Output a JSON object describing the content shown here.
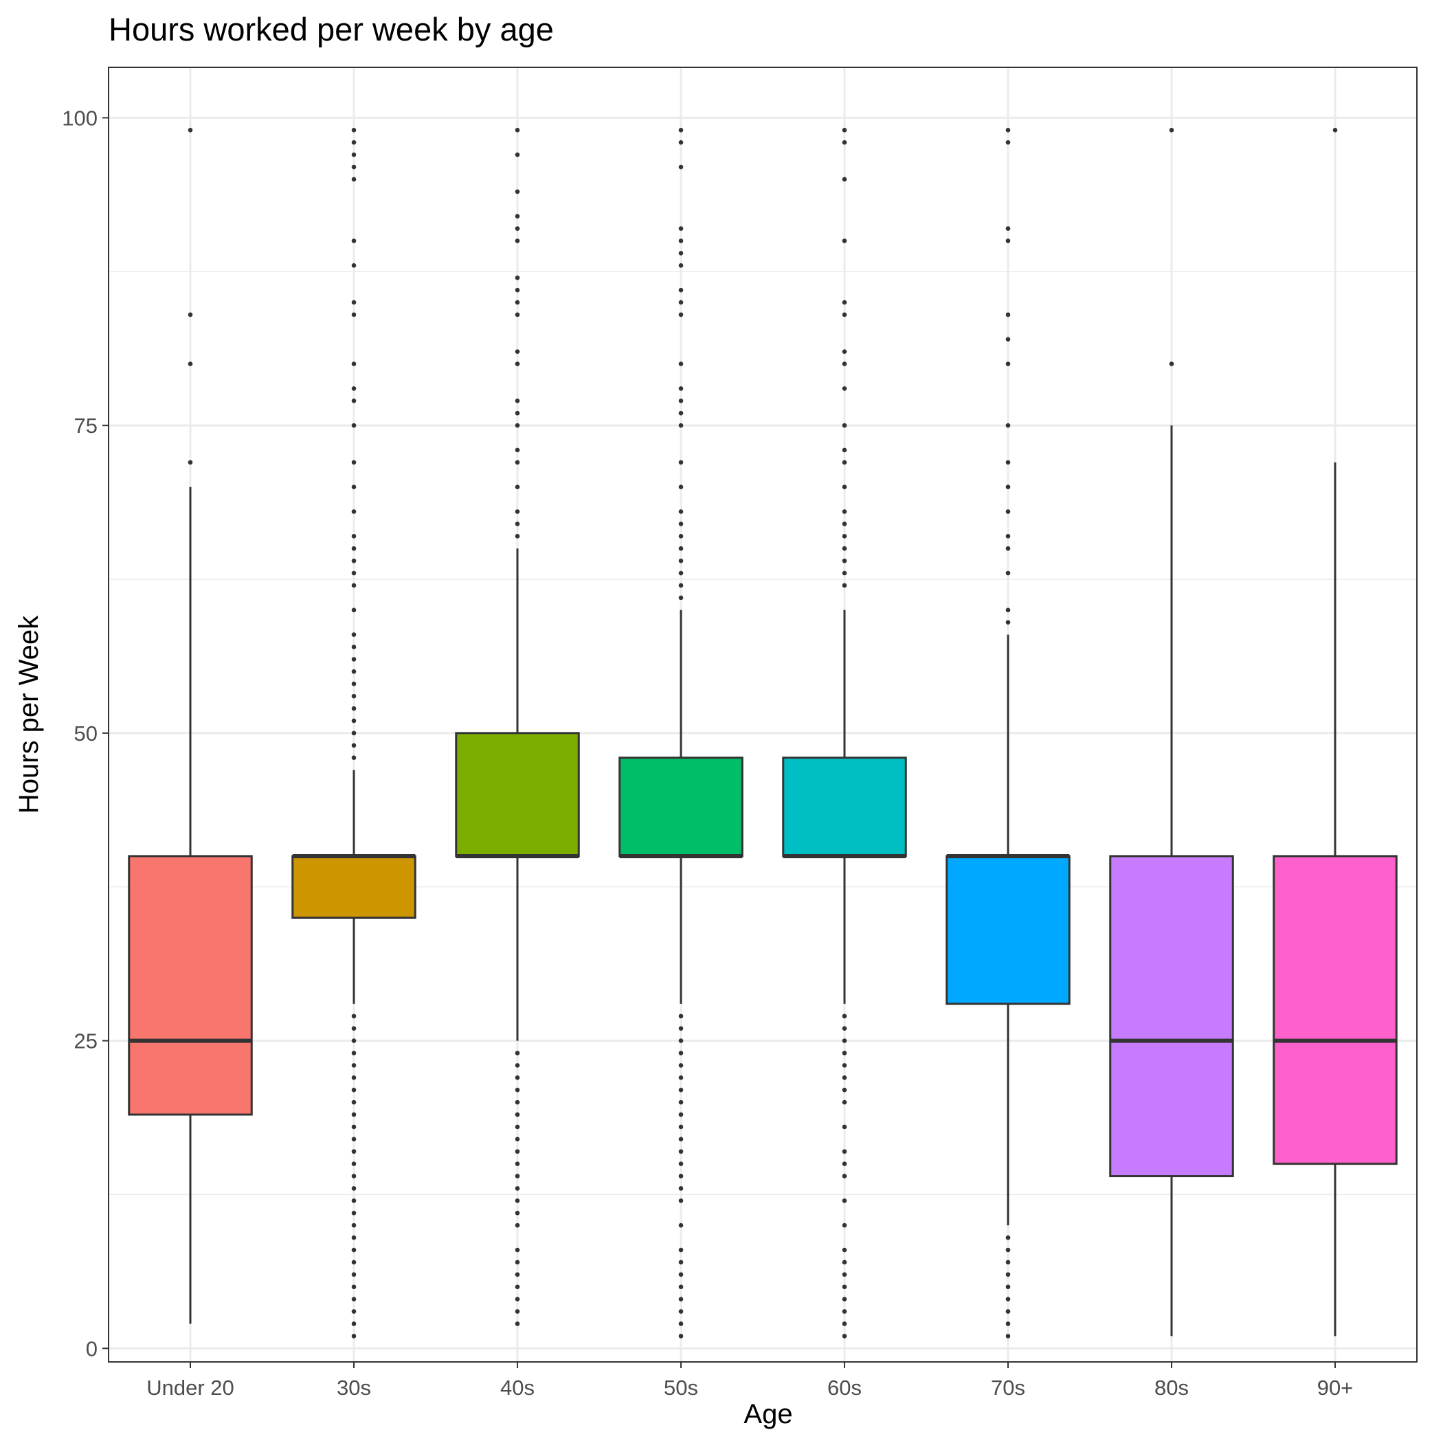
{
  "chart_data": {
    "type": "boxplot",
    "title": "Hours worked per week by age",
    "xlabel": "Age",
    "ylabel": "Hours per Week",
    "ylim": [
      -1.1,
      104.1
    ],
    "yticks": [
      0,
      25,
      50,
      75,
      100
    ],
    "grid": true,
    "legend": "none",
    "categories": [
      "Under 20",
      "30s",
      "40s",
      "50s",
      "60s",
      "70s",
      "80s",
      "90+"
    ],
    "boxes": [
      {
        "category": "Under 20",
        "color": "#F8766D",
        "whisker_low": 2,
        "q1": 19,
        "median": 25,
        "q3": 40,
        "whisker_high": 70,
        "outliers": [
          72,
          80,
          84,
          99
        ]
      },
      {
        "category": "30s",
        "color": "#CD9600",
        "whisker_low": 28,
        "q1": 35,
        "median": 40,
        "q3": 40,
        "whisker_high": 47,
        "outliers": [
          1,
          2,
          3,
          4,
          5,
          6,
          7,
          8,
          9,
          10,
          11,
          12,
          13,
          14,
          15,
          16,
          17,
          18,
          19,
          20,
          21,
          22,
          23,
          24,
          25,
          26,
          27,
          48,
          49,
          50,
          51,
          52,
          53,
          54,
          55,
          56,
          57,
          58,
          60,
          62,
          63,
          64,
          65,
          66,
          68,
          70,
          72,
          75,
          77,
          78,
          80,
          84,
          85,
          88,
          90,
          95,
          96,
          97,
          98,
          99
        ]
      },
      {
        "category": "40s",
        "color": "#7CAE00",
        "whisker_low": 25,
        "q1": 40,
        "median": 40,
        "q3": 50,
        "whisker_high": 65,
        "outliers": [
          2,
          3,
          4,
          5,
          6,
          7,
          8,
          10,
          11,
          12,
          13,
          14,
          15,
          16,
          17,
          18,
          19,
          20,
          21,
          22,
          23,
          24,
          66,
          67,
          68,
          70,
          72,
          73,
          75,
          76,
          77,
          80,
          81,
          84,
          85,
          86,
          87,
          90,
          91,
          92,
          94,
          97,
          99
        ]
      },
      {
        "category": "50s",
        "color": "#00BE67",
        "whisker_low": 28,
        "q1": 40,
        "median": 40,
        "q3": 48,
        "whisker_high": 60,
        "outliers": [
          1,
          2,
          3,
          4,
          5,
          6,
          7,
          8,
          10,
          12,
          13,
          14,
          15,
          16,
          17,
          18,
          19,
          20,
          21,
          22,
          23,
          24,
          25,
          26,
          27,
          61,
          62,
          63,
          64,
          65,
          66,
          67,
          68,
          70,
          72,
          75,
          76,
          77,
          78,
          80,
          84,
          85,
          86,
          88,
          89,
          90,
          91,
          96,
          98,
          99
        ]
      },
      {
        "category": "60s",
        "color": "#00BFC4",
        "whisker_low": 28,
        "q1": 40,
        "median": 40,
        "q3": 48,
        "whisker_high": 60,
        "outliers": [
          1,
          2,
          3,
          4,
          5,
          6,
          7,
          8,
          10,
          12,
          14,
          15,
          16,
          18,
          20,
          21,
          22,
          23,
          24,
          25,
          26,
          27,
          62,
          63,
          64,
          65,
          66,
          67,
          68,
          70,
          72,
          73,
          75,
          78,
          80,
          81,
          84,
          85,
          90,
          95,
          98,
          99
        ]
      },
      {
        "category": "70s",
        "color": "#00A9FF",
        "whisker_low": 10,
        "q1": 28,
        "median": 40,
        "q3": 40,
        "whisker_high": 58,
        "outliers": [
          1,
          2,
          3,
          4,
          5,
          6,
          7,
          8,
          9,
          59,
          60,
          63,
          65,
          66,
          68,
          70,
          72,
          75,
          80,
          82,
          84,
          90,
          91,
          98,
          99
        ]
      },
      {
        "category": "80s",
        "color": "#C77CFF",
        "whisker_low": 1,
        "q1": 14,
        "median": 25,
        "q3": 40,
        "whisker_high": 75,
        "outliers": [
          80,
          99
        ]
      },
      {
        "category": "90+",
        "color": "#FF61CC",
        "whisker_low": 1,
        "q1": 15,
        "median": 25,
        "q3": 40,
        "whisker_high": 72,
        "outliers": [
          99
        ]
      }
    ]
  }
}
